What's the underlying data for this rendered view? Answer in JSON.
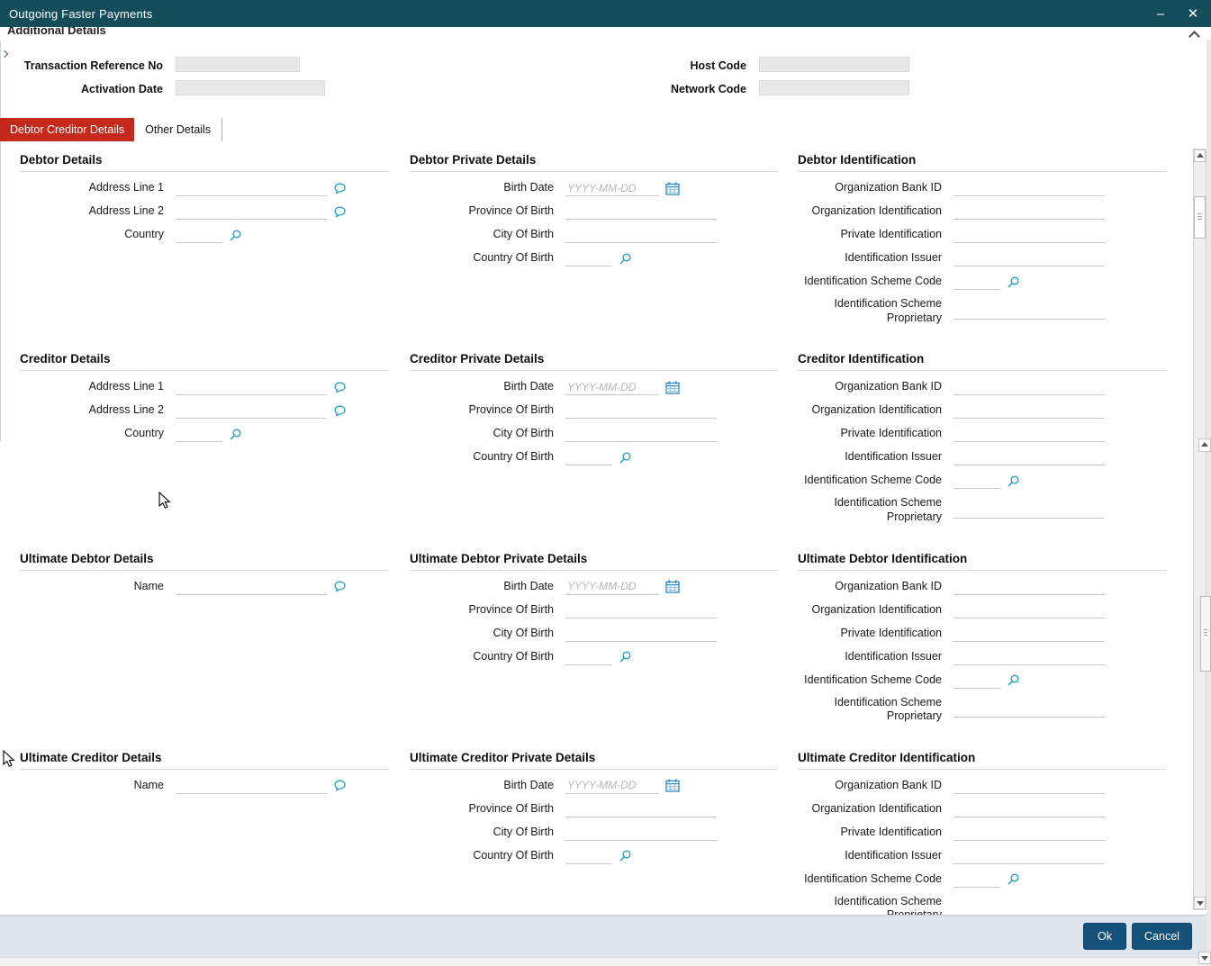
{
  "window": {
    "title": "Outgoing Faster Payments"
  },
  "panel_header": {
    "title": "Additional Details"
  },
  "header_fields": [
    {
      "label": "Transaction Reference No",
      "value": ""
    },
    {
      "label": "Host Code",
      "value": ""
    },
    {
      "label": "Activation Date",
      "value": ""
    },
    {
      "label": "Network Code",
      "value": ""
    }
  ],
  "tabs": [
    {
      "label": "Debtor Creditor Details",
      "active": true
    },
    {
      "label": "Other Details",
      "active": false
    }
  ],
  "form": {
    "rows": [
      {
        "sections": [
          {
            "title": "Debtor Details",
            "fields": [
              {
                "label": "Address Line 1",
                "value": "",
                "icon": "comment"
              },
              {
                "label": "Address Line 2",
                "value": "",
                "icon": "comment"
              },
              {
                "label": "Country",
                "value": "",
                "icon": "search"
              }
            ]
          },
          {
            "title": "Debtor Private Details",
            "fields": [
              {
                "label": "Birth Date",
                "value": "",
                "placeholder": "YYYY-MM-DD",
                "icon": "calendar"
              },
              {
                "label": "Province Of Birth",
                "value": ""
              },
              {
                "label": "City Of Birth",
                "value": ""
              },
              {
                "label": "Country Of Birth",
                "value": "",
                "icon": "search"
              }
            ]
          },
          {
            "title": "Debtor Identification",
            "fields": [
              {
                "label": "Organization Bank ID",
                "value": ""
              },
              {
                "label": "Organization Identification",
                "value": ""
              },
              {
                "label": "Private Identification",
                "value": ""
              },
              {
                "label": "Identification Issuer",
                "value": ""
              },
              {
                "label": "Identification Scheme Code",
                "value": "",
                "icon": "search"
              },
              {
                "label": "Identification Scheme Proprietary",
                "value": ""
              }
            ]
          }
        ]
      },
      {
        "sections": [
          {
            "title": "Creditor Details",
            "fields": [
              {
                "label": "Address Line 1",
                "value": "",
                "icon": "comment"
              },
              {
                "label": "Address Line 2",
                "value": "",
                "icon": "comment"
              },
              {
                "label": "Country",
                "value": "",
                "icon": "search"
              }
            ]
          },
          {
            "title": "Creditor Private Details",
            "fields": [
              {
                "label": "Birth Date",
                "value": "",
                "placeholder": "YYYY-MM-DD",
                "icon": "calendar"
              },
              {
                "label": "Province Of Birth",
                "value": ""
              },
              {
                "label": "City Of Birth",
                "value": ""
              },
              {
                "label": "Country Of Birth",
                "value": "",
                "icon": "search"
              }
            ]
          },
          {
            "title": "Creditor Identification",
            "fields": [
              {
                "label": "Organization Bank ID",
                "value": ""
              },
              {
                "label": "Organization Identification",
                "value": ""
              },
              {
                "label": "Private Identification",
                "value": ""
              },
              {
                "label": "Identification Issuer",
                "value": ""
              },
              {
                "label": "Identification Scheme Code",
                "value": "",
                "icon": "search"
              },
              {
                "label": "Identification Scheme Proprietary",
                "value": ""
              }
            ]
          }
        ]
      },
      {
        "sections": [
          {
            "title": "Ultimate Debtor Details",
            "fields": [
              {
                "label": "Name",
                "value": "",
                "icon": "comment"
              }
            ]
          },
          {
            "title": "Ultimate Debtor Private Details",
            "fields": [
              {
                "label": "Birth Date",
                "value": "",
                "placeholder": "YYYY-MM-DD",
                "icon": "calendar"
              },
              {
                "label": "Province Of Birth",
                "value": ""
              },
              {
                "label": "City Of Birth",
                "value": ""
              },
              {
                "label": "Country Of Birth",
                "value": "",
                "icon": "search"
              }
            ]
          },
          {
            "title": "Ultimate Debtor Identification",
            "fields": [
              {
                "label": "Organization Bank ID",
                "value": ""
              },
              {
                "label": "Organization Identification",
                "value": ""
              },
              {
                "label": "Private Identification",
                "value": ""
              },
              {
                "label": "Identification Issuer",
                "value": ""
              },
              {
                "label": "Identification Scheme Code",
                "value": "",
                "icon": "search"
              },
              {
                "label": "Identification Scheme Proprietary",
                "value": ""
              }
            ]
          }
        ]
      },
      {
        "sections": [
          {
            "title": "Ultimate Creditor Details",
            "fields": [
              {
                "label": "Name",
                "value": "",
                "icon": "comment"
              }
            ]
          },
          {
            "title": "Ultimate Creditor Private Details",
            "fields": [
              {
                "label": "Birth Date",
                "value": "",
                "placeholder": "YYYY-MM-DD",
                "icon": "calendar"
              },
              {
                "label": "Province Of Birth",
                "value": ""
              },
              {
                "label": "City Of Birth",
                "value": ""
              },
              {
                "label": "Country Of Birth",
                "value": "",
                "icon": "search"
              }
            ]
          },
          {
            "title": "Ultimate Creditor Identification",
            "fields": [
              {
                "label": "Organization Bank ID",
                "value": ""
              },
              {
                "label": "Organization Identification",
                "value": ""
              },
              {
                "label": "Private Identification",
                "value": ""
              },
              {
                "label": "Identification Issuer",
                "value": ""
              },
              {
                "label": "Identification Scheme Code",
                "value": "",
                "icon": "search"
              },
              {
                "label": "Identification Scheme Proprietary",
                "value": ""
              }
            ]
          }
        ]
      }
    ]
  },
  "footer": {
    "ok_label": "Ok",
    "cancel_label": "Cancel"
  },
  "icons": {
    "minimize_glyph": "–",
    "close_glyph": "✕",
    "collapse": "chevron-up",
    "comment": "speech-bubble",
    "search": "magnifier",
    "calendar": "calendar-grid"
  },
  "colors": {
    "titlebar": "#134d5a",
    "tab_active": "#c4291c",
    "accent": "#2b9fc0",
    "button": "#14517b"
  }
}
